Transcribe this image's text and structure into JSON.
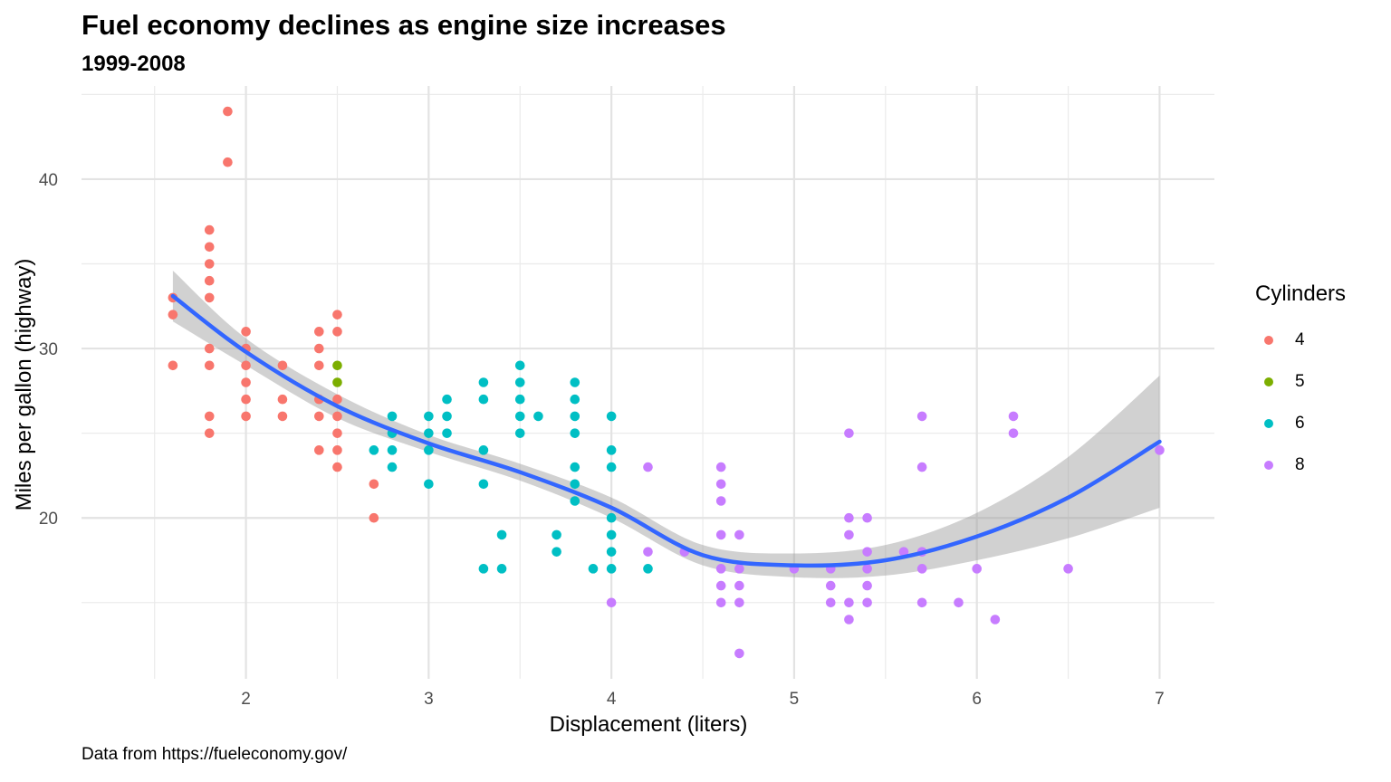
{
  "title": "Fuel economy declines as engine size increases",
  "subtitle": "1999-2008",
  "caption": "Data from https://fueleconomy.gov/",
  "chart_data": {
    "type": "scatter",
    "xlabel": "Displacement (liters)",
    "ylabel": "Miles per gallon (highway)",
    "xlim": [
      1.1,
      7.3
    ],
    "ylim": [
      10.5,
      45.5
    ],
    "x_ticks": [
      2,
      3,
      4,
      5,
      6,
      7
    ],
    "y_ticks": [
      20,
      30,
      40
    ],
    "grid": true,
    "legend": {
      "title": "Cylinders",
      "position": "right",
      "items": [
        {
          "label": "4",
          "color": "#F8766D"
        },
        {
          "label": "5",
          "color": "#7CAE00"
        },
        {
          "label": "6",
          "color": "#00BFC4"
        },
        {
          "label": "8",
          "color": "#C77CFF"
        }
      ]
    },
    "series": [
      {
        "name": "4",
        "color": "#F8766D",
        "points": [
          [
            1.6,
            33
          ],
          [
            1.6,
            32
          ],
          [
            1.6,
            29
          ],
          [
            1.8,
            37
          ],
          [
            1.8,
            36
          ],
          [
            1.8,
            35
          ],
          [
            1.8,
            34
          ],
          [
            1.8,
            33
          ],
          [
            1.8,
            30
          ],
          [
            1.8,
            29
          ],
          [
            1.8,
            26
          ],
          [
            1.8,
            25
          ],
          [
            1.9,
            44
          ],
          [
            1.9,
            41
          ],
          [
            2.0,
            31
          ],
          [
            2.0,
            30
          ],
          [
            2.0,
            29
          ],
          [
            2.0,
            28
          ],
          [
            2.0,
            27
          ],
          [
            2.0,
            26
          ],
          [
            2.2,
            29
          ],
          [
            2.2,
            27
          ],
          [
            2.2,
            26
          ],
          [
            2.4,
            31
          ],
          [
            2.4,
            30
          ],
          [
            2.4,
            29
          ],
          [
            2.4,
            27
          ],
          [
            2.4,
            26
          ],
          [
            2.4,
            24
          ],
          [
            2.5,
            32
          ],
          [
            2.5,
            31
          ],
          [
            2.5,
            27
          ],
          [
            2.5,
            26
          ],
          [
            2.5,
            25
          ],
          [
            2.5,
            24
          ],
          [
            2.5,
            23
          ],
          [
            2.7,
            22
          ],
          [
            2.7,
            20
          ]
        ]
      },
      {
        "name": "5",
        "color": "#7CAE00",
        "points": [
          [
            2.5,
            29
          ],
          [
            2.5,
            28
          ]
        ]
      },
      {
        "name": "6",
        "color": "#00BFC4",
        "points": [
          [
            2.7,
            24
          ],
          [
            2.8,
            26
          ],
          [
            2.8,
            25
          ],
          [
            2.8,
            24
          ],
          [
            2.8,
            23
          ],
          [
            3.0,
            26
          ],
          [
            3.0,
            25
          ],
          [
            3.0,
            24
          ],
          [
            3.0,
            22
          ],
          [
            3.1,
            27
          ],
          [
            3.1,
            26
          ],
          [
            3.1,
            25
          ],
          [
            3.3,
            28
          ],
          [
            3.3,
            27
          ],
          [
            3.3,
            24
          ],
          [
            3.3,
            22
          ],
          [
            3.3,
            17
          ],
          [
            3.4,
            19
          ],
          [
            3.4,
            17
          ],
          [
            3.5,
            29
          ],
          [
            3.5,
            28
          ],
          [
            3.5,
            27
          ],
          [
            3.5,
            26
          ],
          [
            3.5,
            25
          ],
          [
            3.6,
            26
          ],
          [
            3.7,
            19
          ],
          [
            3.7,
            18
          ],
          [
            3.8,
            28
          ],
          [
            3.8,
            27
          ],
          [
            3.8,
            26
          ],
          [
            3.8,
            25
          ],
          [
            3.8,
            23
          ],
          [
            3.8,
            22
          ],
          [
            3.8,
            21
          ],
          [
            3.9,
            17
          ],
          [
            4.0,
            26
          ],
          [
            4.0,
            24
          ],
          [
            4.0,
            23
          ],
          [
            4.0,
            20
          ],
          [
            4.0,
            19
          ],
          [
            4.0,
            18
          ],
          [
            4.0,
            17
          ],
          [
            4.2,
            17
          ]
        ]
      },
      {
        "name": "8",
        "color": "#C77CFF",
        "points": [
          [
            4.0,
            15
          ],
          [
            4.2,
            23
          ],
          [
            4.2,
            18
          ],
          [
            4.4,
            18
          ],
          [
            4.6,
            23
          ],
          [
            4.6,
            22
          ],
          [
            4.6,
            21
          ],
          [
            4.6,
            19
          ],
          [
            4.6,
            17
          ],
          [
            4.6,
            16
          ],
          [
            4.6,
            15
          ],
          [
            4.7,
            19
          ],
          [
            4.7,
            17
          ],
          [
            4.7,
            16
          ],
          [
            4.7,
            15
          ],
          [
            4.7,
            12
          ],
          [
            5.0,
            17
          ],
          [
            5.2,
            17
          ],
          [
            5.2,
            16
          ],
          [
            5.2,
            15
          ],
          [
            5.3,
            25
          ],
          [
            5.3,
            20
          ],
          [
            5.3,
            19
          ],
          [
            5.3,
            15
          ],
          [
            5.3,
            14
          ],
          [
            5.4,
            20
          ],
          [
            5.4,
            18
          ],
          [
            5.4,
            17
          ],
          [
            5.4,
            16
          ],
          [
            5.4,
            15
          ],
          [
            5.6,
            18
          ],
          [
            5.7,
            26
          ],
          [
            5.7,
            23
          ],
          [
            5.7,
            18
          ],
          [
            5.7,
            17
          ],
          [
            5.7,
            15
          ],
          [
            5.9,
            15
          ],
          [
            6.0,
            17
          ],
          [
            6.1,
            14
          ],
          [
            6.2,
            26
          ],
          [
            6.2,
            25
          ],
          [
            6.5,
            17
          ],
          [
            7.0,
            24
          ]
        ]
      }
    ],
    "smooth": {
      "method": "loess",
      "color": "#3366FF",
      "band_color": "#999999",
      "x": [
        1.6,
        2.0,
        2.5,
        3.0,
        3.5,
        4.0,
        4.5,
        5.0,
        5.5,
        6.0,
        6.5,
        7.0
      ],
      "y": [
        33.1,
        29.8,
        26.6,
        24.4,
        22.7,
        20.6,
        17.8,
        17.2,
        17.5,
        18.9,
        21.2,
        24.5
      ],
      "lower": [
        31.6,
        29.0,
        25.9,
        23.9,
        22.2,
        20.0,
        17.2,
        16.5,
        16.6,
        17.5,
        18.8,
        20.6
      ],
      "upper": [
        34.6,
        30.6,
        27.3,
        24.9,
        23.2,
        21.2,
        18.4,
        17.9,
        18.4,
        20.3,
        23.6,
        28.4
      ]
    }
  }
}
